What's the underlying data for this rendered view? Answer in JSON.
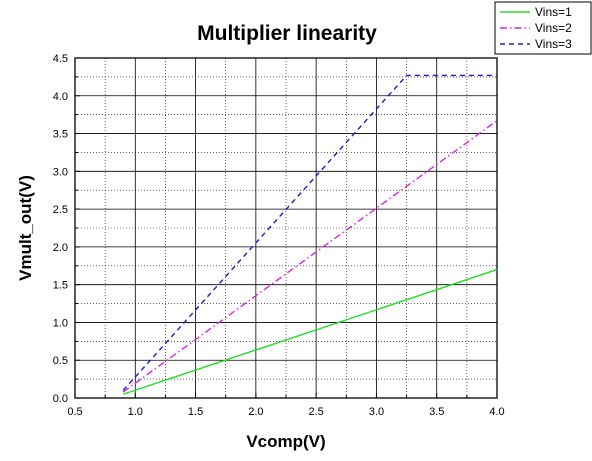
{
  "chart_data": {
    "type": "line",
    "title": "Multiplier linearity",
    "xlabel": "Vcomp(V)",
    "ylabel": "Vmult_out(V)",
    "xlim": [
      0.5,
      4.0
    ],
    "ylim": [
      0.0,
      4.5
    ],
    "xticks": [
      "0.5",
      "1.0",
      "1.5",
      "2.0",
      "2.5",
      "3.0",
      "3.5",
      "4.0"
    ],
    "yticks": [
      "0.0",
      "0.5",
      "1.0",
      "1.5",
      "2.0",
      "2.5",
      "3.0",
      "3.5",
      "4.0",
      "4.5"
    ],
    "grid": true,
    "legend_position": "top-right",
    "series": [
      {
        "name": "Vins=1",
        "color": "#22dd22",
        "dash": "solid",
        "x": [
          0.9,
          4.0
        ],
        "y": [
          0.05,
          1.7
        ]
      },
      {
        "name": "Vins=2",
        "color": "#dd22dd",
        "dash": "dashdot",
        "x": [
          0.9,
          4.0
        ],
        "y": [
          0.08,
          3.67
        ]
      },
      {
        "name": "Vins=3",
        "color": "#1a1ad0",
        "dash": "dash",
        "x": [
          0.9,
          3.25,
          3.3,
          4.0
        ],
        "y": [
          0.1,
          4.27,
          4.27,
          4.27
        ]
      }
    ]
  }
}
